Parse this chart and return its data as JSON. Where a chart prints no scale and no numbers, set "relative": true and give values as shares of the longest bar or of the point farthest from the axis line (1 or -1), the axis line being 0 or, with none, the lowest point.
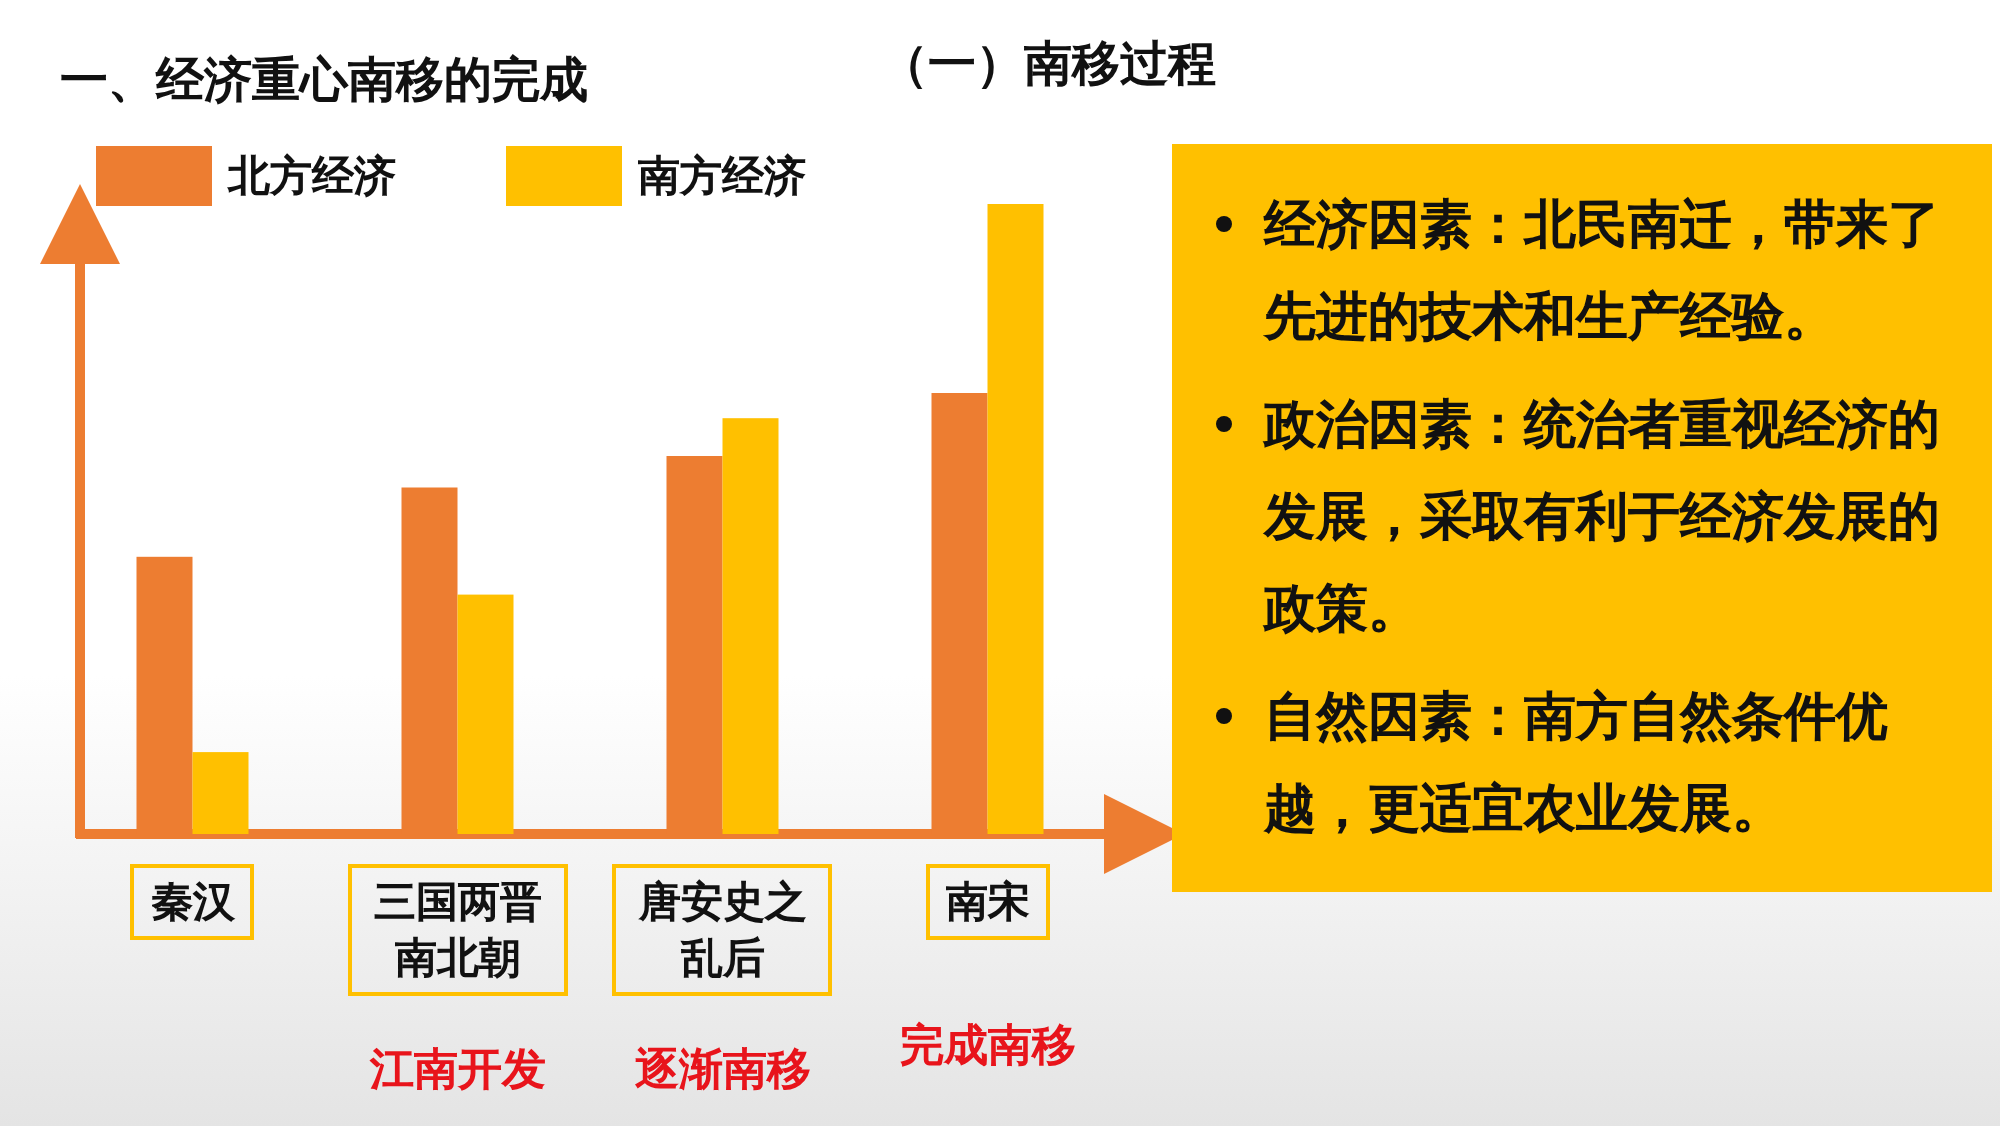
{
  "chart_data": [
    {
      "type": "bar",
      "relative": true,
      "title": "一、经济重心南移的完成",
      "subtitle": "（一）南移过程",
      "categories": [
        "秦汉",
        "三国两晋南北朝",
        "唐安史之乱后",
        "南宋"
      ],
      "series": [
        {
          "name": "北方经济",
          "color": "#ed7d31",
          "values": [
            0.44,
            0.55,
            0.6,
            0.7
          ]
        },
        {
          "name": "南方经济",
          "color": "#ffc000",
          "values": [
            0.13,
            0.38,
            0.66,
            1.0
          ]
        }
      ],
      "legend": "top left",
      "annotations": [
        "江南开发",
        "逐渐南移",
        "完成南移"
      ]
    },
    {
      "type": "other",
      "annotations": [
        "经济因素：北民南迁，带来了先进的技术和生产经验。",
        "政治因素：统治者重视经济的发展，采取有利于经济发展的政策。",
        "自然因素：南方自然条件优越，更适宜农业发展。"
      ]
    }
  ]
}
